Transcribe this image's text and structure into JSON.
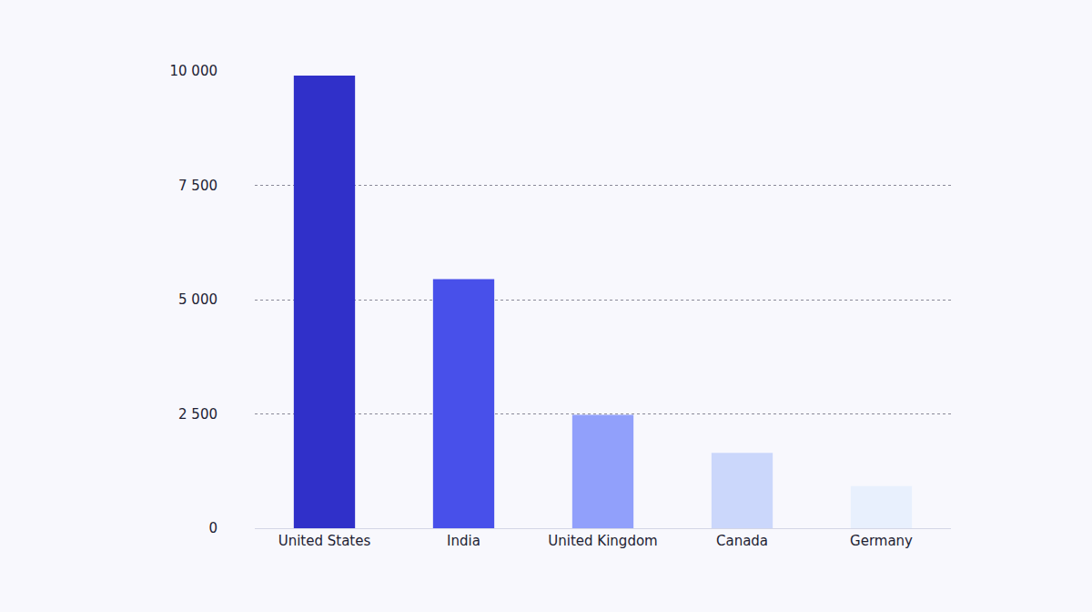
{
  "chart_data": {
    "type": "bar",
    "categories": [
      "United States",
      "India",
      "United Kingdom",
      "Canada",
      "Germany"
    ],
    "values": [
      9900,
      5450,
      2480,
      1650,
      920
    ],
    "colors": [
      "#3030c9",
      "#4850ea",
      "#91a0fb",
      "#cbd7fb",
      "#e8f0fd"
    ],
    "ylim": [
      0,
      10000
    ],
    "yticks": [
      0,
      {
        "value": 2500,
        "label": "2 500"
      },
      {
        "value": 5000,
        "label": "5 000"
      },
      {
        "value": 7500,
        "label": "7 500"
      },
      {
        "value": 10000,
        "label": "10 000"
      }
    ],
    "grid": true
  }
}
